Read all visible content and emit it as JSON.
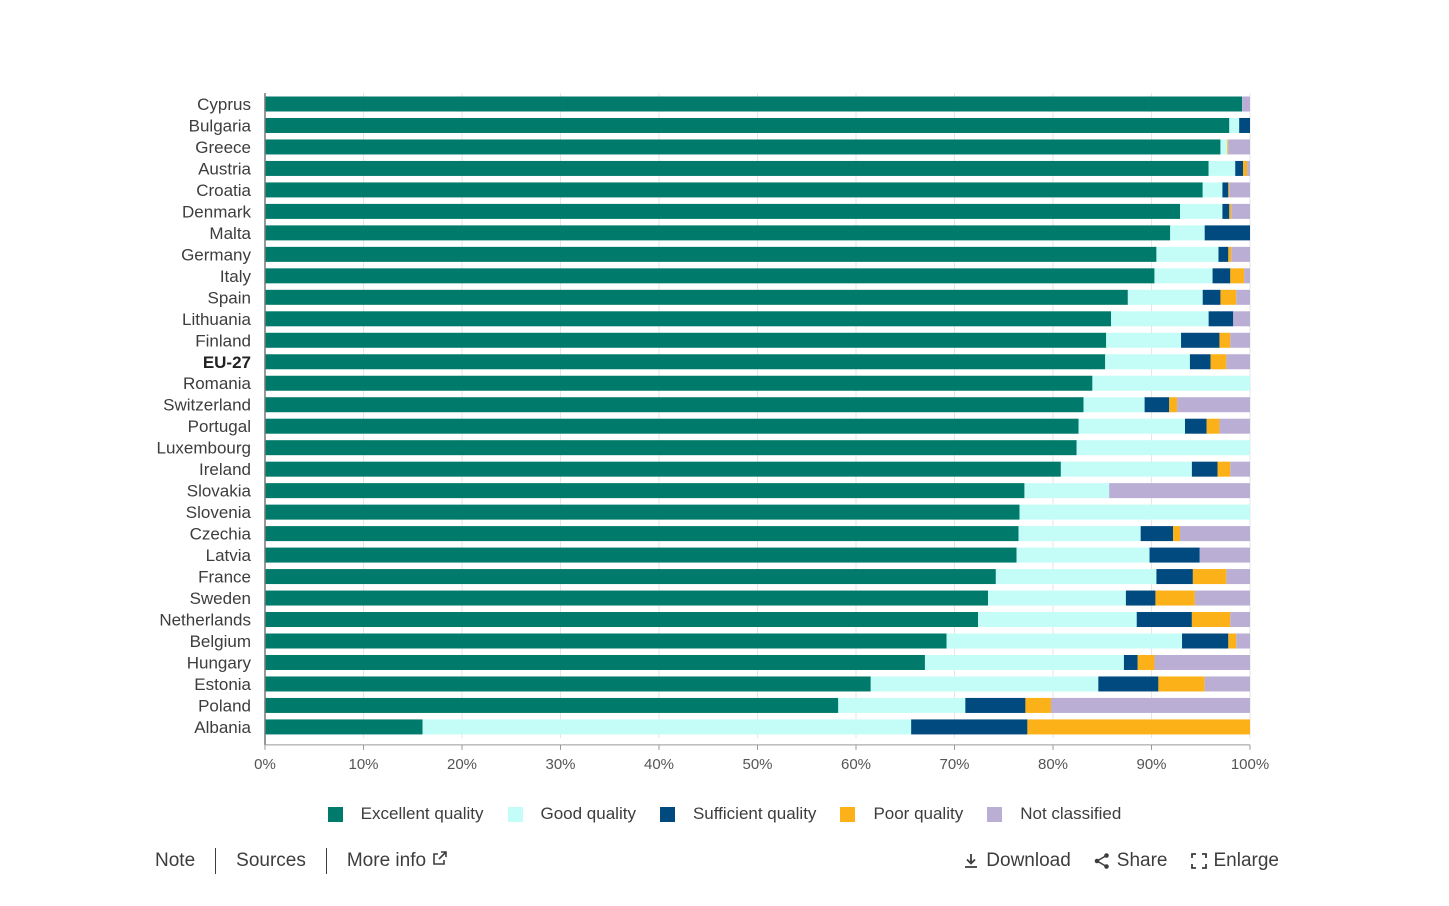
{
  "chart_data": {
    "type": "bar",
    "orientation": "horizontal",
    "stacked": true,
    "categories": [
      "Cyprus",
      "Bulgaria",
      "Greece",
      "Austria",
      "Croatia",
      "Denmark",
      "Malta",
      "Germany",
      "Italy",
      "Spain",
      "Lithuania",
      "Finland",
      "EU-27",
      "Romania",
      "Switzerland",
      "Portugal",
      "Luxembourg",
      "Ireland",
      "Slovakia",
      "Slovenia",
      "Czechia",
      "Latvia",
      "France",
      "Sweden",
      "Netherlands",
      "Belgium",
      "Hungary",
      "Estonia",
      "Poland",
      "Albania"
    ],
    "bold_categories": [
      "EU-27"
    ],
    "series": [
      {
        "name": "Excellent quality",
        "color": "#007a6a",
        "values": [
          99.2,
          97.9,
          97.0,
          95.8,
          95.2,
          92.9,
          91.9,
          90.5,
          90.3,
          87.6,
          85.9,
          85.4,
          85.3,
          84.0,
          83.1,
          82.6,
          82.4,
          80.8,
          77.1,
          76.6,
          76.5,
          76.3,
          74.2,
          73.4,
          72.4,
          69.2,
          67.0,
          61.5,
          58.2,
          16.0
        ]
      },
      {
        "name": "Good quality",
        "color": "#c4fdf8",
        "values": [
          0.0,
          1.0,
          0.7,
          2.7,
          2.0,
          4.3,
          3.5,
          6.3,
          5.9,
          7.6,
          9.9,
          7.6,
          8.6,
          16.0,
          6.2,
          10.8,
          17.6,
          13.3,
          8.6,
          23.4,
          12.4,
          13.5,
          16.3,
          14.0,
          16.1,
          23.9,
          20.2,
          23.1,
          12.9,
          49.6
        ]
      },
      {
        "name": "Sufficient quality",
        "color": "#004a7f",
        "values": [
          0.0,
          1.1,
          0.0,
          0.8,
          0.6,
          0.7,
          4.6,
          1.0,
          1.8,
          1.8,
          2.5,
          3.9,
          2.1,
          0.0,
          2.5,
          2.2,
          0.0,
          2.6,
          0.0,
          0.0,
          3.3,
          5.1,
          3.7,
          3.0,
          5.6,
          4.7,
          1.4,
          6.1,
          6.1,
          11.8
        ]
      },
      {
        "name": "Poor quality",
        "color": "#fbb117",
        "values": [
          0.0,
          0.0,
          0.1,
          0.4,
          0.1,
          0.2,
          0.0,
          0.3,
          1.4,
          1.6,
          0.0,
          1.1,
          1.6,
          0.0,
          0.8,
          1.3,
          0.0,
          1.3,
          0.0,
          0.0,
          0.7,
          0.0,
          3.4,
          4.0,
          3.9,
          0.8,
          1.7,
          4.7,
          2.6,
          22.6
        ]
      },
      {
        "name": "Not classified",
        "color": "#bbaed5",
        "values": [
          0.8,
          0.0,
          2.2,
          0.3,
          2.1,
          1.9,
          0.0,
          1.9,
          0.6,
          1.4,
          1.7,
          2.0,
          2.4,
          0.0,
          7.4,
          3.1,
          0.0,
          2.0,
          14.3,
          0.0,
          7.1,
          5.1,
          2.4,
          5.6,
          2.0,
          1.4,
          9.7,
          4.6,
          20.2,
          0.0
        ]
      }
    ],
    "x_ticks": [
      "0%",
      "10%",
      "20%",
      "30%",
      "40%",
      "50%",
      "60%",
      "70%",
      "80%",
      "90%",
      "100%"
    ],
    "xlim": [
      0,
      100
    ],
    "grid": "vertical",
    "legend_position": "bottom"
  },
  "footer": {
    "note": "Note",
    "sources": "Sources",
    "more_info": "More info",
    "download": "Download",
    "share": "Share",
    "enlarge": "Enlarge"
  },
  "icons": {
    "more_info": "external-link-icon",
    "download": "download-icon",
    "share": "share-icon",
    "enlarge": "enlarge-icon"
  }
}
